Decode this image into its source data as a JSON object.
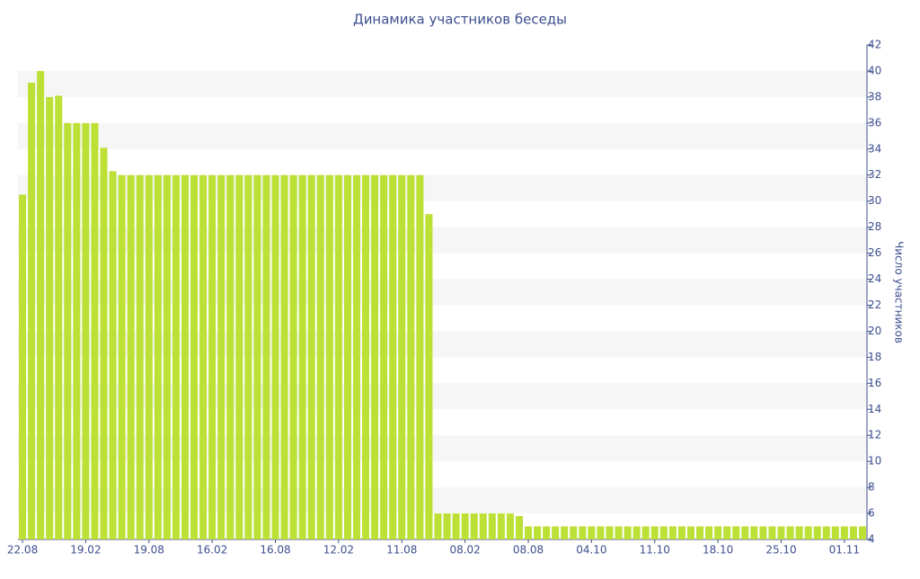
{
  "chart_data": {
    "type": "bar",
    "title": "Динамика участников беседы",
    "y_label": "Число участников",
    "color": "#bde036",
    "grid": true,
    "ylim": [
      4,
      42
    ],
    "yticks": [
      4,
      6,
      8,
      10,
      12,
      14,
      16,
      18,
      20,
      22,
      24,
      26,
      28,
      30,
      32,
      34,
      36,
      38,
      40,
      42
    ],
    "categories": [
      "22.08",
      null,
      null,
      null,
      null,
      null,
      null,
      "19.02",
      null,
      null,
      null,
      null,
      null,
      null,
      "19.08",
      null,
      null,
      null,
      null,
      null,
      null,
      "16.02",
      null,
      null,
      null,
      null,
      null,
      null,
      "16.08",
      null,
      null,
      null,
      null,
      null,
      null,
      "12.02",
      null,
      null,
      null,
      null,
      null,
      null,
      "11.08",
      null,
      null,
      null,
      null,
      null,
      null,
      "08.02",
      null,
      null,
      null,
      null,
      null,
      null,
      "08.08",
      null,
      null,
      null,
      null,
      null,
      null,
      "04.10",
      null,
      null,
      null,
      null,
      null,
      null,
      "11.10",
      null,
      null,
      null,
      null,
      null,
      null,
      "18.10",
      null,
      null,
      null,
      null,
      null,
      null,
      "25.10",
      null,
      null,
      null,
      null,
      null,
      null,
      "01.11",
      null,
      null
    ],
    "values": [
      30.5,
      39.1,
      40,
      38,
      38.1,
      36,
      36,
      36,
      36,
      34.1,
      32.3,
      32,
      32,
      32,
      32,
      32,
      32,
      32,
      32,
      32,
      32,
      32,
      32,
      32,
      32,
      32,
      32,
      32,
      32,
      32,
      32,
      32,
      32,
      32,
      32,
      32,
      32,
      32,
      32,
      32,
      32,
      32,
      32,
      32,
      32,
      29,
      6,
      6,
      6,
      6,
      6,
      6,
      6,
      6,
      6,
      5.8,
      5,
      5,
      5,
      5,
      5,
      5,
      5,
      5,
      5,
      5,
      5,
      5,
      5,
      5,
      5,
      5,
      5,
      5,
      5,
      5,
      5,
      5,
      5,
      5,
      5,
      5,
      5,
      5,
      5,
      5,
      5,
      5,
      5,
      5,
      5,
      5,
      5,
      5
    ]
  }
}
